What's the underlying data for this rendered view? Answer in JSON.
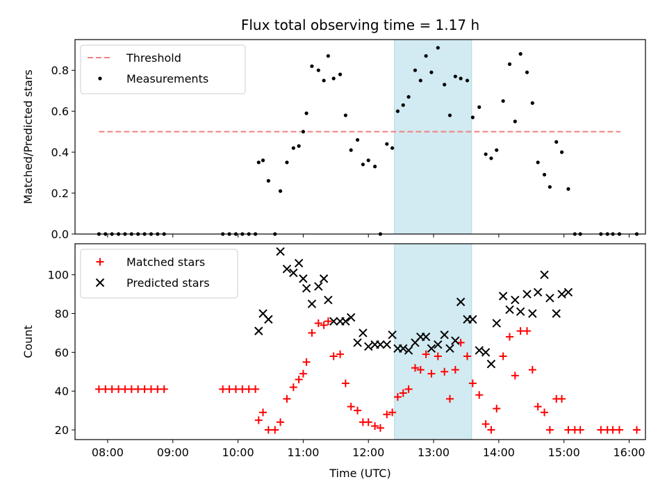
{
  "chart_data": [
    {
      "type": "scatter",
      "title": "Flux total observing time = 1.17 h",
      "xlabel": "",
      "ylabel": "Matched/Predicted stars",
      "xlim": [
        "07:30",
        "16:15"
      ],
      "ylim": [
        0,
        0.95
      ],
      "yticks": [
        "0.0",
        "0.2",
        "0.4",
        "0.6",
        "0.8"
      ],
      "highlight_span": {
        "x0": "12:24",
        "x1": "13:35",
        "color": "#add8e6"
      },
      "legend_position": "top-left",
      "threshold": {
        "name": "Threshold",
        "value": 0.5,
        "x0": "07:52",
        "x1": "15:52",
        "color": "#f08080"
      },
      "series": [
        {
          "name": "Measurements",
          "color": "#000000",
          "marker": "dot",
          "points": [
            [
              "07:52",
              0
            ],
            [
              "07:58",
              0
            ],
            [
              "08:04",
              0
            ],
            [
              "08:10",
              0
            ],
            [
              "08:16",
              0
            ],
            [
              "08:22",
              0
            ],
            [
              "08:28",
              0
            ],
            [
              "08:34",
              0
            ],
            [
              "08:40",
              0
            ],
            [
              "08:46",
              0
            ],
            [
              "08:52",
              0
            ],
            [
              "09:46",
              0
            ],
            [
              "09:52",
              0
            ],
            [
              "09:58",
              0
            ],
            [
              "10:04",
              0
            ],
            [
              "10:10",
              0
            ],
            [
              "10:16",
              0
            ],
            [
              "10:19",
              0.35
            ],
            [
              "10:23",
              0.36
            ],
            [
              "10:28",
              0.26
            ],
            [
              "10:34",
              0
            ],
            [
              "10:39",
              0.21
            ],
            [
              "10:45",
              0.35
            ],
            [
              "10:51",
              0.42
            ],
            [
              "10:56",
              0.43
            ],
            [
              "11:00",
              0.5
            ],
            [
              "11:03",
              0.59
            ],
            [
              "11:08",
              0.82
            ],
            [
              "11:14",
              0.8
            ],
            [
              "11:19",
              0.75
            ],
            [
              "11:23",
              0.87
            ],
            [
              "11:28",
              0.76
            ],
            [
              "11:34",
              0.78
            ],
            [
              "11:39",
              0.58
            ],
            [
              "11:44",
              0.41
            ],
            [
              "11:50",
              0.46
            ],
            [
              "11:55",
              0.34
            ],
            [
              "12:00",
              0.36
            ],
            [
              "12:06",
              0.33
            ],
            [
              "12:11",
              0
            ],
            [
              "12:17",
              0.44
            ],
            [
              "12:22",
              0.42
            ],
            [
              "12:27",
              0.6
            ],
            [
              "12:32",
              0.63
            ],
            [
              "12:37",
              0.67
            ],
            [
              "12:43",
              0.8
            ],
            [
              "12:48",
              0.75
            ],
            [
              "12:53",
              0.87
            ],
            [
              "12:58",
              0.79
            ],
            [
              "13:04",
              0.91
            ],
            [
              "13:10",
              0.73
            ],
            [
              "13:15",
              0.58
            ],
            [
              "13:20",
              0.77
            ],
            [
              "13:25",
              0.76
            ],
            [
              "13:31",
              0.75
            ],
            [
              "13:36",
              0.57
            ],
            [
              "13:42",
              0.62
            ],
            [
              "13:48",
              0.39
            ],
            [
              "13:53",
              0.37
            ],
            [
              "13:58",
              0.41
            ],
            [
              "14:04",
              0.65
            ],
            [
              "14:10",
              0.83
            ],
            [
              "14:15",
              0.55
            ],
            [
              "14:20",
              0.88
            ],
            [
              "14:26",
              0.79
            ],
            [
              "14:31",
              0.64
            ],
            [
              "14:36",
              0.35
            ],
            [
              "14:42",
              0.29
            ],
            [
              "14:47",
              0.23
            ],
            [
              "14:53",
              0.45
            ],
            [
              "14:58",
              0.4
            ],
            [
              "15:04",
              0.22
            ],
            [
              "15:10",
              0
            ],
            [
              "15:15",
              0
            ],
            [
              "15:34",
              0
            ],
            [
              "15:40",
              0
            ],
            [
              "15:45",
              0
            ],
            [
              "15:51",
              0
            ],
            [
              "16:07",
              0
            ]
          ]
        }
      ]
    },
    {
      "type": "scatter",
      "title": "",
      "xlabel": "Time (UTC)",
      "ylabel": "Count",
      "xlim": [
        "07:30",
        "16:15"
      ],
      "ylim": [
        15,
        116
      ],
      "yticks": [
        "20",
        "40",
        "60",
        "80",
        "100"
      ],
      "xticks": [
        "08:00",
        "09:00",
        "10:00",
        "11:00",
        "12:00",
        "13:00",
        "14:00",
        "15:00",
        "16:00"
      ],
      "highlight_span": {
        "x0": "12:24",
        "x1": "13:35",
        "color": "#add8e6"
      },
      "legend_position": "top-left",
      "series": [
        {
          "name": "Matched stars",
          "color": "#ff0000",
          "marker": "plus",
          "points": [
            [
              "07:52",
              41
            ],
            [
              "07:58",
              41
            ],
            [
              "08:04",
              41
            ],
            [
              "08:10",
              41
            ],
            [
              "08:16",
              41
            ],
            [
              "08:22",
              41
            ],
            [
              "08:28",
              41
            ],
            [
              "08:34",
              41
            ],
            [
              "08:40",
              41
            ],
            [
              "08:46",
              41
            ],
            [
              "08:52",
              41
            ],
            [
              "09:46",
              41
            ],
            [
              "09:52",
              41
            ],
            [
              "09:58",
              41
            ],
            [
              "10:04",
              41
            ],
            [
              "10:10",
              41
            ],
            [
              "10:16",
              41
            ],
            [
              "10:19",
              25
            ],
            [
              "10:23",
              29
            ],
            [
              "10:28",
              20
            ],
            [
              "10:34",
              20
            ],
            [
              "10:39",
              24
            ],
            [
              "10:45",
              36
            ],
            [
              "10:51",
              42
            ],
            [
              "10:56",
              46
            ],
            [
              "11:00",
              49
            ],
            [
              "11:03",
              55
            ],
            [
              "11:08",
              70
            ],
            [
              "11:14",
              75
            ],
            [
              "11:19",
              74
            ],
            [
              "11:23",
              76
            ],
            [
              "11:28",
              58
            ],
            [
              "11:34",
              59
            ],
            [
              "11:39",
              44
            ],
            [
              "11:44",
              32
            ],
            [
              "11:50",
              30
            ],
            [
              "11:55",
              24
            ],
            [
              "12:00",
              24
            ],
            [
              "12:06",
              22
            ],
            [
              "12:11",
              21
            ],
            [
              "12:17",
              28
            ],
            [
              "12:22",
              29
            ],
            [
              "12:27",
              37
            ],
            [
              "12:32",
              39
            ],
            [
              "12:37",
              41
            ],
            [
              "12:43",
              52
            ],
            [
              "12:48",
              51
            ],
            [
              "12:53",
              59
            ],
            [
              "12:58",
              49
            ],
            [
              "13:04",
              58
            ],
            [
              "13:10",
              50
            ],
            [
              "13:15",
              36
            ],
            [
              "13:20",
              51
            ],
            [
              "13:25",
              65
            ],
            [
              "13:31",
              58
            ],
            [
              "13:36",
              44
            ],
            [
              "13:42",
              38
            ],
            [
              "13:48",
              23
            ],
            [
              "13:53",
              20
            ],
            [
              "13:58",
              31
            ],
            [
              "14:04",
              58
            ],
            [
              "14:10",
              68
            ],
            [
              "14:15",
              48
            ],
            [
              "14:20",
              71
            ],
            [
              "14:26",
              71
            ],
            [
              "14:31",
              51
            ],
            [
              "14:36",
              32
            ],
            [
              "14:42",
              29
            ],
            [
              "14:47",
              20
            ],
            [
              "14:53",
              36
            ],
            [
              "14:58",
              36
            ],
            [
              "15:04",
              20
            ],
            [
              "15:10",
              20
            ],
            [
              "15:15",
              20
            ],
            [
              "15:34",
              20
            ],
            [
              "15:40",
              20
            ],
            [
              "15:45",
              20
            ],
            [
              "15:51",
              20
            ],
            [
              "16:07",
              20
            ]
          ]
        },
        {
          "name": "Predicted stars",
          "color": "#000000",
          "marker": "x",
          "points": [
            [
              "10:19",
              71
            ],
            [
              "10:23",
              80
            ],
            [
              "10:28",
              77
            ],
            [
              "10:39",
              112
            ],
            [
              "10:45",
              103
            ],
            [
              "10:51",
              101
            ],
            [
              "10:56",
              106
            ],
            [
              "11:00",
              98
            ],
            [
              "11:03",
              93
            ],
            [
              "11:08",
              85
            ],
            [
              "11:14",
              94
            ],
            [
              "11:19",
              98
            ],
            [
              "11:23",
              87
            ],
            [
              "11:28",
              76
            ],
            [
              "11:34",
              76
            ],
            [
              "11:39",
              76
            ],
            [
              "11:44",
              78
            ],
            [
              "11:50",
              65
            ],
            [
              "11:55",
              70
            ],
            [
              "12:00",
              63
            ],
            [
              "12:06",
              64
            ],
            [
              "12:11",
              64
            ],
            [
              "12:17",
              64
            ],
            [
              "12:22",
              69
            ],
            [
              "12:27",
              62
            ],
            [
              "12:32",
              62
            ],
            [
              "12:37",
              61
            ],
            [
              "12:43",
              65
            ],
            [
              "12:48",
              68
            ],
            [
              "12:53",
              68
            ],
            [
              "12:58",
              62
            ],
            [
              "13:04",
              64
            ],
            [
              "13:10",
              69
            ],
            [
              "13:15",
              62
            ],
            [
              "13:20",
              66
            ],
            [
              "13:25",
              86
            ],
            [
              "13:31",
              77
            ],
            [
              "13:36",
              77
            ],
            [
              "13:42",
              61
            ],
            [
              "13:48",
              60
            ],
            [
              "13:53",
              54
            ],
            [
              "13:58",
              75
            ],
            [
              "14:04",
              89
            ],
            [
              "14:10",
              82
            ],
            [
              "14:15",
              87
            ],
            [
              "14:20",
              81
            ],
            [
              "14:26",
              90
            ],
            [
              "14:31",
              80
            ],
            [
              "14:36",
              91
            ],
            [
              "14:42",
              100
            ],
            [
              "14:47",
              88
            ],
            [
              "14:53",
              80
            ],
            [
              "14:58",
              90
            ],
            [
              "15:04",
              91
            ]
          ]
        }
      ]
    }
  ]
}
